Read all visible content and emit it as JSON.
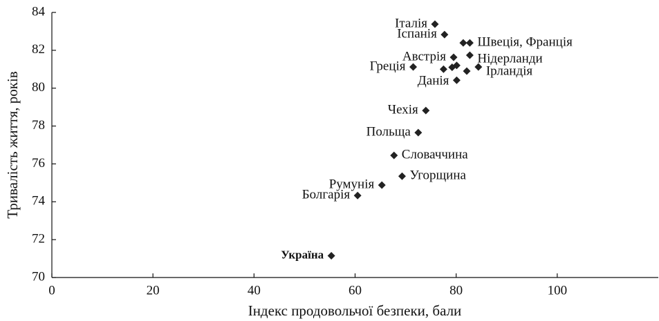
{
  "chart_data": {
    "type": "scatter",
    "x_label": "Індекс продовольчої безпеки, бали",
    "y_label": "Тривалість життя, років",
    "color": "#222222",
    "x": [
      75.8,
      77.7,
      81.4,
      82.7,
      79.5,
      82.7,
      71.5,
      84.4,
      80.1,
      74.0,
      72.5,
      67.7,
      69.3,
      65.3,
      60.5,
      55.3,
      77.5,
      79.2,
      80.1,
      82.1
    ],
    "values": [
      83.38,
      82.83,
      82.39,
      82.39,
      81.63,
      81.74,
      81.12,
      81.12,
      80.42,
      78.82,
      77.65,
      76.45,
      75.35,
      74.88,
      74.33,
      71.15,
      81.0,
      81.1,
      81.2,
      80.9
    ],
    "labels": [
      "Італія",
      "Іспанія",
      null,
      "Швеція, Франція",
      "Австрія",
      "Нідерланди",
      "Греція",
      "Ірландія",
      "Данія",
      "Чехія",
      "Польща",
      "Словаччина",
      "Угорщина",
      "Румунія",
      "Болгарія",
      "Україна",
      null,
      null,
      null,
      null
    ],
    "xlim": [
      0,
      120
    ],
    "xticks": [
      0,
      20,
      40,
      60,
      80,
      100
    ],
    "ylim": [
      70,
      84
    ],
    "yticks": [
      70,
      72,
      74,
      76,
      78,
      80,
      82,
      84
    ]
  }
}
